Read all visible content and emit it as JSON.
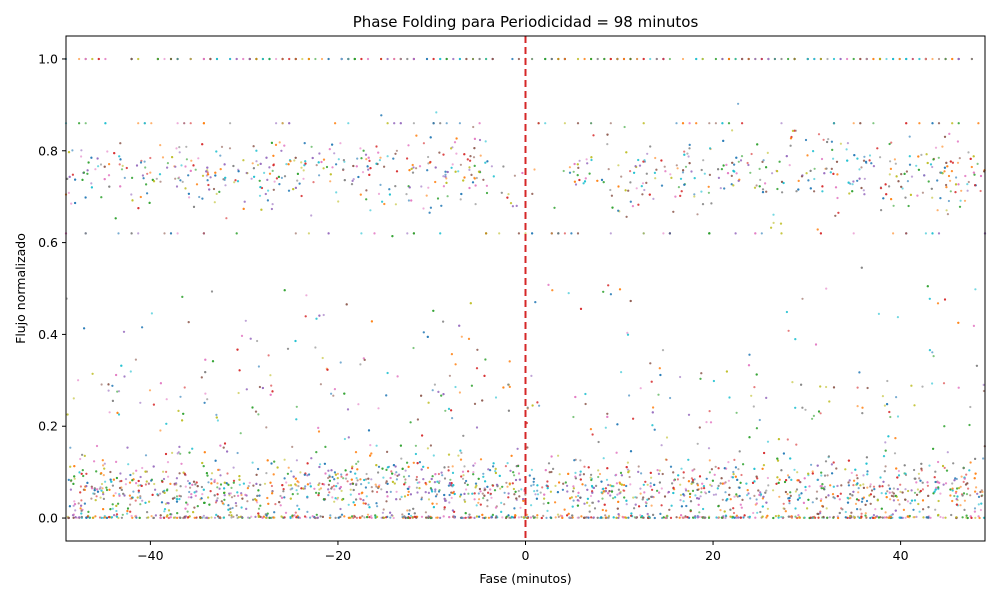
{
  "chart_data": {
    "type": "scatter",
    "title": "Phase Folding para Periodicidad = 98 minutos",
    "xlabel": "Fase (minutos)",
    "ylabel": "Flujo normalizado",
    "xlim": [
      -49,
      49
    ],
    "ylim": [
      -0.05,
      1.05
    ],
    "x_ticks": [
      {
        "value": -40,
        "label": "−40"
      },
      {
        "value": -20,
        "label": "−20"
      },
      {
        "value": 0,
        "label": "0"
      },
      {
        "value": 20,
        "label": "20"
      },
      {
        "value": 40,
        "label": "40"
      }
    ],
    "y_ticks": [
      {
        "value": 0.0,
        "label": "0.0"
      },
      {
        "value": 0.2,
        "label": "0.2"
      },
      {
        "value": 0.4,
        "label": "0.4"
      },
      {
        "value": 0.6,
        "label": "0.6"
      },
      {
        "value": 0.8,
        "label": "0.8"
      },
      {
        "value": 1.0,
        "label": "1.0"
      }
    ],
    "reference_line": {
      "x": 0,
      "color": "#d62728",
      "style": "dashed"
    },
    "grid": false,
    "series_colors": [
      "#1f77b4",
      "#ff7f0e",
      "#2ca02c",
      "#d62728",
      "#9467bd",
      "#8c564b",
      "#e377c2",
      "#7f7f7f",
      "#bcbd22",
      "#17becf"
    ],
    "flux_bands": [
      {
        "level": 1.0,
        "spread": 0.0,
        "weight": 0.07,
        "note": "saturated top row"
      },
      {
        "level": 0.86,
        "spread": 0.0,
        "weight": 0.02,
        "note": "dotted row"
      },
      {
        "level": 0.75,
        "spread": 0.04,
        "weight": 0.22,
        "note": "main upper band"
      },
      {
        "level": 0.62,
        "spread": 0.0,
        "weight": 0.02,
        "note": "dotted row"
      },
      {
        "level": 0.46,
        "spread": 0.03,
        "weight": 0.01,
        "note": "sparse band"
      },
      {
        "level": 0.25,
        "spread": 0.08,
        "weight": 0.08,
        "note": "diffuse mid band"
      },
      {
        "level": 0.06,
        "spread": 0.035,
        "weight": 0.45,
        "note": "main lower band"
      },
      {
        "level": 0.0,
        "spread": 0.003,
        "weight": 0.13,
        "note": "baseline"
      }
    ]
  }
}
